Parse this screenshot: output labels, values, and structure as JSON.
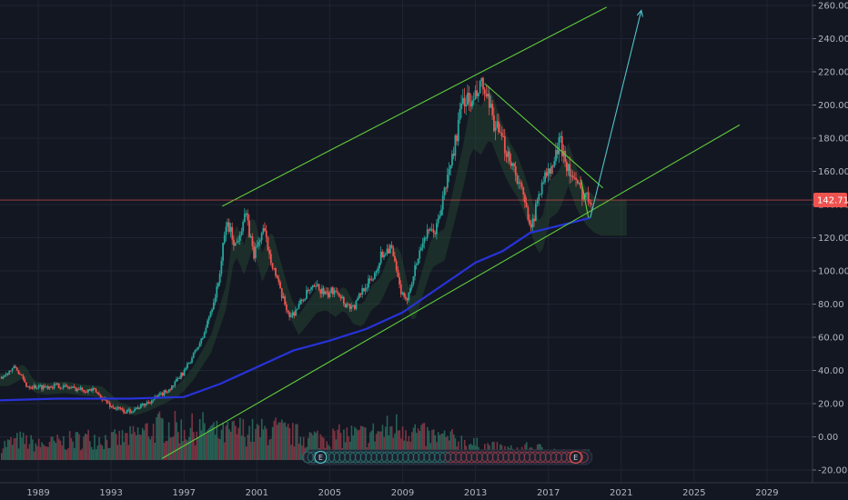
{
  "chart_data": {
    "type": "candlestick",
    "x_ticks": [
      "1989",
      "1993",
      "1997",
      "2001",
      "2005",
      "2009",
      "2013",
      "2017",
      "2021",
      "2025",
      "2029"
    ],
    "y_ticks": [
      "-20.00",
      "0.00",
      "20.00",
      "40.00",
      "60.00",
      "80.00",
      "100.00",
      "120.00",
      "140.00",
      "160.00",
      "180.00",
      "200.00",
      "220.00",
      "240.00",
      "260.00"
    ],
    "y_range": [
      -20,
      262
    ],
    "x_range": [
      1986.9,
      2031.5
    ],
    "last_price": "142.71",
    "price_points": [
      [
        1986.9,
        36
      ],
      [
        1987.7,
        42
      ],
      [
        1988.3,
        31
      ],
      [
        1989.0,
        30
      ],
      [
        1990.0,
        31
      ],
      [
        1991.0,
        29
      ],
      [
        1992.0,
        28
      ],
      [
        1993.0,
        18
      ],
      [
        1993.8,
        15
      ],
      [
        1994.5,
        18
      ],
      [
        1995.5,
        24
      ],
      [
        1996.3,
        30
      ],
      [
        1997.0,
        40
      ],
      [
        1998.0,
        60
      ],
      [
        1998.8,
        90
      ],
      [
        1999.3,
        130
      ],
      [
        1999.8,
        115
      ],
      [
        2000.3,
        135
      ],
      [
        2000.8,
        110
      ],
      [
        2001.3,
        125
      ],
      [
        2001.8,
        105
      ],
      [
        2002.3,
        85
      ],
      [
        2002.8,
        72
      ],
      [
        2003.3,
        80
      ],
      [
        2003.8,
        88
      ],
      [
        2004.3,
        90
      ],
      [
        2004.8,
        85
      ],
      [
        2005.3,
        90
      ],
      [
        2005.8,
        80
      ],
      [
        2006.3,
        78
      ],
      [
        2006.8,
        90
      ],
      [
        2007.3,
        95
      ],
      [
        2007.8,
        110
      ],
      [
        2008.3,
        115
      ],
      [
        2008.8,
        90
      ],
      [
        2009.1,
        80
      ],
      [
        2009.6,
        100
      ],
      [
        2010.1,
        120
      ],
      [
        2010.8,
        125
      ],
      [
        2011.3,
        150
      ],
      [
        2011.8,
        175
      ],
      [
        2012.3,
        205
      ],
      [
        2012.8,
        200
      ],
      [
        2013.3,
        212
      ],
      [
        2013.8,
        195
      ],
      [
        2014.3,
        180
      ],
      [
        2014.8,
        170
      ],
      [
        2015.3,
        155
      ],
      [
        2015.8,
        135
      ],
      [
        2016.1,
        128
      ],
      [
        2016.6,
        155
      ],
      [
        2017.1,
        160
      ],
      [
        2017.6,
        178
      ],
      [
        2018.1,
        160
      ],
      [
        2018.6,
        150
      ],
      [
        2019.0,
        145
      ],
      [
        2019.4,
        142.7
      ]
    ],
    "volume_points": [
      [
        1987,
        6
      ],
      [
        1988,
        8
      ],
      [
        1989,
        6
      ],
      [
        1990,
        7
      ],
      [
        1991,
        8
      ],
      [
        1992,
        9
      ],
      [
        1993,
        8
      ],
      [
        1994,
        9
      ],
      [
        1995,
        12
      ],
      [
        1996,
        14
      ],
      [
        1997,
        12
      ],
      [
        1998,
        13
      ],
      [
        1999,
        10
      ],
      [
        2000,
        12
      ],
      [
        2001,
        11
      ],
      [
        2002,
        12
      ],
      [
        2003,
        10
      ],
      [
        2004,
        9
      ],
      [
        2005,
        9
      ],
      [
        2006,
        10
      ],
      [
        2007,
        10
      ],
      [
        2008,
        12
      ],
      [
        2009,
        14
      ],
      [
        2010,
        10
      ],
      [
        2011,
        9
      ],
      [
        2012,
        8
      ],
      [
        2013,
        6
      ],
      [
        2014,
        5
      ],
      [
        2015,
        4
      ],
      [
        2016,
        5
      ],
      [
        2017,
        4
      ],
      [
        2018,
        3
      ],
      [
        2019,
        3
      ]
    ],
    "moving_average_points": [
      [
        1986.9,
        22
      ],
      [
        1990,
        23
      ],
      [
        1994,
        23
      ],
      [
        1997,
        24
      ],
      [
        1999,
        32
      ],
      [
        2001,
        42
      ],
      [
        2003,
        52
      ],
      [
        2005,
        58
      ],
      [
        2007,
        65
      ],
      [
        2009,
        75
      ],
      [
        2011,
        90
      ],
      [
        2013,
        105
      ],
      [
        2014.5,
        112
      ],
      [
        2016,
        123
      ],
      [
        2017.5,
        127
      ],
      [
        2019.3,
        132
      ]
    ],
    "drawn_lines": [
      {
        "color": "#5fcc3c",
        "points": [
          [
            1999.1,
            139
          ],
          [
            2020.2,
            259
          ]
        ]
      },
      {
        "color": "#5fcc3c",
        "points": [
          [
            1995.8,
            -13
          ],
          [
            2027.5,
            188
          ]
        ]
      },
      {
        "color": "#5fcc3c",
        "points": [
          [
            2013.5,
            213
          ],
          [
            2020.0,
            150
          ]
        ]
      },
      {
        "color": "#5fcc3c",
        "points": [
          [
            2018.8,
            155
          ],
          [
            2019.2,
            132
          ]
        ]
      },
      {
        "color": "#4fc3c9",
        "points": [
          [
            2019.3,
            132
          ],
          [
            2022.1,
            257
          ]
        ],
        "arrow": true
      }
    ],
    "events": [
      {
        "x": 2004.5,
        "label": "E",
        "color": "#4fc3c9"
      },
      {
        "x": 2018.5,
        "label": "E",
        "color": "#ef5350"
      }
    ]
  }
}
